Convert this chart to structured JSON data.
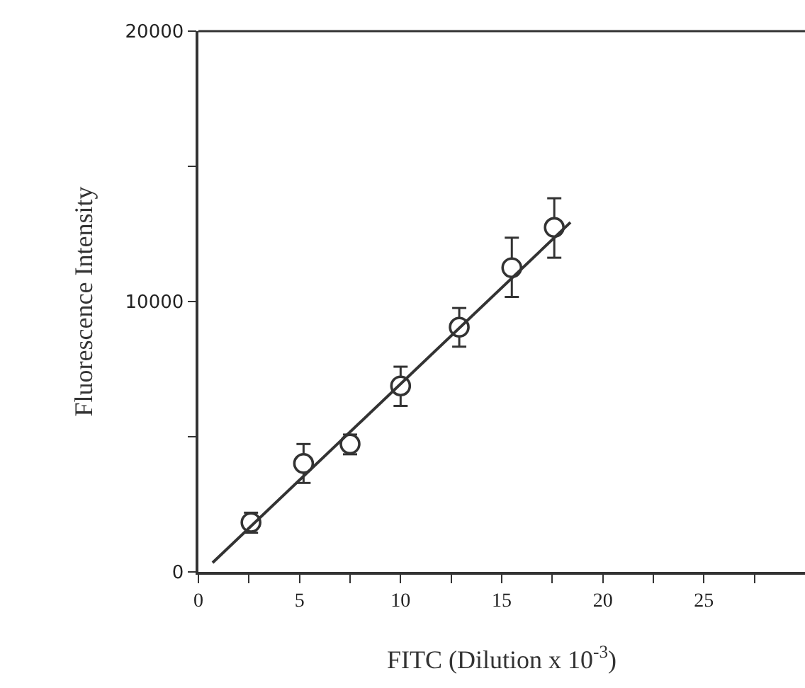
{
  "chart_data": {
    "type": "scatter",
    "xlabel": "FITC (Dilution x 10$^{-3}$)",
    "ylabel": "Fluorescence Intensity",
    "xlim": [
      0,
      30
    ],
    "ylim": [
      0,
      20000
    ],
    "xticks": [
      0,
      {
        "value": 2.5,
        "label": null
      },
      5,
      {
        "value": 7.5,
        "label": null
      },
      10,
      {
        "value": 12.5,
        "label": null
      },
      15,
      {
        "value": 17.5,
        "label": null
      },
      20,
      {
        "value": 22.5,
        "label": null
      },
      25,
      {
        "value": 27.5,
        "label": null
      }
    ],
    "yticks": [
      0,
      {
        "value": 5000,
        "label": null
      },
      10000,
      {
        "value": 15000,
        "label": null
      },
      20000
    ],
    "series": [
      {
        "marker": "circle",
        "color": "#333333",
        "x": [
          2.6,
          5.2,
          7.5,
          10,
          12.9,
          15.5,
          17.6
        ],
        "values": [
          1830,
          4010,
          4730,
          6880,
          9050,
          11250,
          12740
        ],
        "errors": [
          [
            1450,
            2190
          ],
          [
            3290,
            4730
          ],
          [
            4350,
            5080
          ],
          [
            6140,
            7590
          ],
          [
            8330,
            9760
          ],
          [
            10170,
            12360
          ],
          [
            11620,
            13820
          ]
        ]
      },
      {
        "type": "line",
        "color": "#333333",
        "line_style": "solid",
        "x": [
          0.7,
          18.4
        ],
        "values": [
          340,
          12930
        ]
      }
    ]
  }
}
